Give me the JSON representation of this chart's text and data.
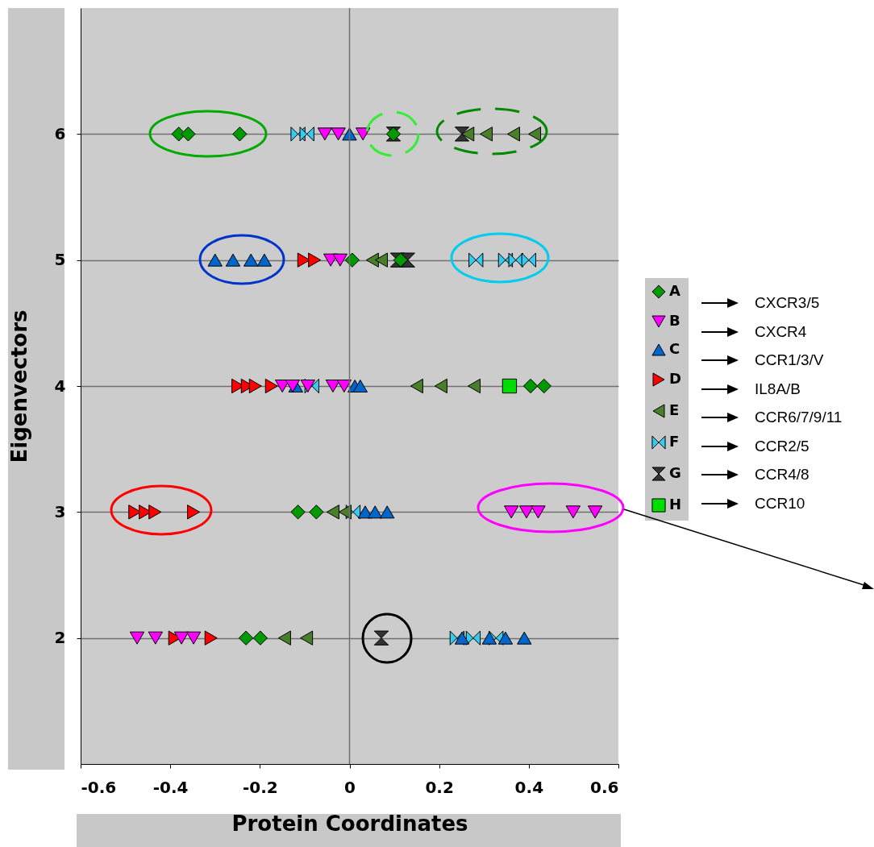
{
  "chart_data": {
    "type": "scatter",
    "xlabel": "Protein Coordinates",
    "ylabel": "Eigenvectors",
    "xlim": [
      -0.6,
      0.6
    ],
    "ylim": [
      1,
      7
    ],
    "xticks": [
      -0.6,
      -0.4,
      -0.2,
      0,
      0.2,
      0.4,
      0.6
    ],
    "yticks": [
      2,
      3,
      4,
      5,
      6
    ],
    "grid": "y",
    "legend": "right",
    "ref_lines": [
      {
        "axis": "x",
        "value": 0
      }
    ],
    "annotations": [
      "CXCR3/5",
      "CXCR4",
      "CCR1/3/V",
      "IL8A/B",
      "CCR6/7/9/11",
      "CCR2/5",
      "CCR4/8",
      "CCR10"
    ],
    "series": [
      {
        "name": "A",
        "color": "#009900",
        "marker": "diamond",
        "x": [
          -0.381,
          -0.36,
          -0.245,
          0.098,
          0.006,
          0.114,
          0.404,
          0.434,
          -0.115,
          -0.074,
          -0.231,
          -0.199
        ],
        "values": [
          6,
          6,
          6,
          6,
          5,
          5,
          4,
          4,
          3,
          3,
          2,
          2
        ]
      },
      {
        "name": "B",
        "color": "#ff00ff",
        "marker": "triangle-down",
        "x": [
          -0.055,
          -0.025,
          0.03,
          -0.042,
          -0.021,
          -0.15,
          -0.127,
          -0.093,
          -0.037,
          -0.012,
          0.361,
          0.395,
          0.421,
          0.499,
          0.548,
          -0.474,
          -0.433,
          -0.375,
          -0.348
        ],
        "values": [
          6,
          6,
          6,
          5,
          5,
          4,
          4,
          4,
          4,
          4,
          3,
          3,
          3,
          3,
          3,
          2,
          2,
          2,
          2
        ]
      },
      {
        "name": "C",
        "color": "#0066cc",
        "marker": "triangle-up",
        "x": [
          0.0,
          -0.3,
          -0.26,
          -0.22,
          -0.19,
          -0.12,
          0.012,
          0.024,
          0.035,
          0.057,
          0.084,
          0.251,
          0.312,
          0.348,
          0.39
        ],
        "values": [
          6,
          5,
          5,
          5,
          5,
          4,
          4,
          4,
          3,
          3,
          3,
          2,
          2,
          2,
          2
        ]
      },
      {
        "name": "D",
        "color": "#ff0000",
        "marker": "triangle-right",
        "x": [
          -0.102,
          -0.078,
          -0.249,
          -0.228,
          -0.21,
          -0.174,
          -0.479,
          -0.456,
          -0.434,
          -0.348,
          -0.39,
          -0.309
        ],
        "values": [
          5,
          5,
          4,
          4,
          4,
          4,
          3,
          3,
          3,
          3,
          2,
          2
        ]
      },
      {
        "name": "E",
        "color": "#4a7f2a",
        "marker": "triangle-left",
        "x": [
          0.264,
          0.305,
          0.366,
          0.413,
          0.051,
          0.071,
          0.15,
          0.204,
          0.278,
          -0.037,
          -0.01,
          -0.145,
          -0.096
        ],
        "values": [
          6,
          6,
          6,
          6,
          5,
          5,
          4,
          4,
          4,
          3,
          3,
          2,
          2
        ]
      },
      {
        "name": "F",
        "color": "#33ccee",
        "x": [
          -0.115,
          -0.095,
          0.282,
          0.348,
          0.371,
          0.4,
          -0.084,
          0.008,
          0.24,
          0.276,
          0.327
        ],
        "values": [
          6,
          6,
          5,
          5,
          5,
          5,
          4,
          3,
          2,
          2,
          2
        ]
      },
      {
        "name": "G",
        "color": "#333333",
        "x": [
          0.098,
          0.251,
          0.107,
          0.13,
          0.071
        ],
        "values": [
          6,
          6,
          5,
          5,
          2
        ]
      },
      {
        "name": "H",
        "color": "#00dd00",
        "marker": "square",
        "x": [
          0.357
        ],
        "values": [
          4
        ]
      }
    ]
  }
}
